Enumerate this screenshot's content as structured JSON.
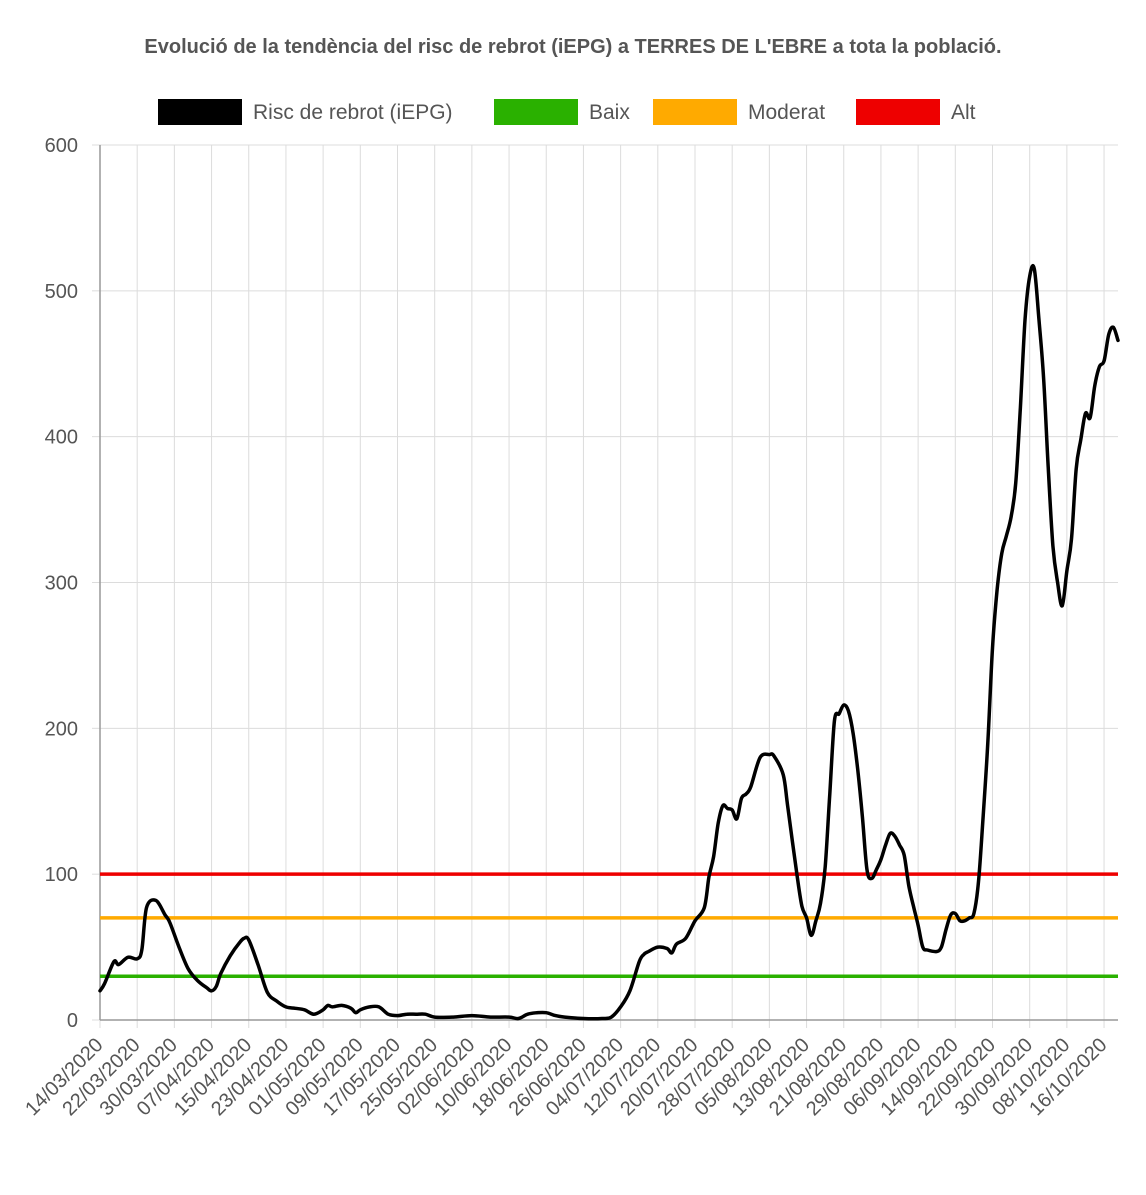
{
  "chart_data": {
    "type": "line",
    "title": "Evolució de la tendència del risc de rebrot (iEPG) a TERRES DE L'EBRE a tota la població.",
    "xlabel": "",
    "ylabel": "",
    "ylim": [
      0,
      600
    ],
    "y_ticks": [
      0,
      100,
      200,
      300,
      400,
      500,
      600
    ],
    "x_start": "14/03/2020",
    "x_end": "19/10/2020",
    "x_tick_labels": [
      "14/03/2020",
      "22/03/2020",
      "30/03/2020",
      "07/04/2020",
      "15/04/2020",
      "23/04/2020",
      "01/05/2020",
      "09/05/2020",
      "17/05/2020",
      "25/05/2020",
      "02/06/2020",
      "10/06/2020",
      "18/06/2020",
      "26/06/2020",
      "04/07/2020",
      "12/07/2020",
      "20/07/2020",
      "28/07/2020",
      "05/08/2020",
      "13/08/2020",
      "21/08/2020",
      "29/08/2020",
      "06/09/2020",
      "14/09/2020",
      "22/09/2020",
      "30/09/2020",
      "08/10/2020",
      "16/10/2020"
    ],
    "grid": true,
    "legend_position": "top",
    "series": [
      {
        "name": "Risc de rebrot (iEPG)",
        "color": "#000000",
        "points": [
          [
            "14/03/2020",
            20
          ],
          [
            "15/03/2020",
            25
          ],
          [
            "17/03/2020",
            40
          ],
          [
            "18/03/2020",
            38
          ],
          [
            "20/03/2020",
            43
          ],
          [
            "22/03/2020",
            42
          ],
          [
            "23/03/2020",
            48
          ],
          [
            "24/03/2020",
            77
          ],
          [
            "26/03/2020",
            82
          ],
          [
            "28/03/2020",
            72
          ],
          [
            "29/03/2020",
            67
          ],
          [
            "31/03/2020",
            50
          ],
          [
            "02/04/2020",
            35
          ],
          [
            "04/04/2020",
            27
          ],
          [
            "06/04/2020",
            22
          ],
          [
            "07/04/2020",
            20
          ],
          [
            "08/04/2020",
            23
          ],
          [
            "09/04/2020",
            32
          ],
          [
            "11/04/2020",
            44
          ],
          [
            "13/04/2020",
            53
          ],
          [
            "14/04/2020",
            56
          ],
          [
            "15/04/2020",
            55
          ],
          [
            "17/04/2020",
            38
          ],
          [
            "19/04/2020",
            19
          ],
          [
            "21/04/2020",
            13
          ],
          [
            "23/04/2020",
            9
          ],
          [
            "25/04/2020",
            8
          ],
          [
            "27/04/2020",
            7
          ],
          [
            "29/04/2020",
            4
          ],
          [
            "01/05/2020",
            7
          ],
          [
            "02/05/2020",
            10
          ],
          [
            "03/05/2020",
            9
          ],
          [
            "05/05/2020",
            10
          ],
          [
            "07/05/2020",
            8
          ],
          [
            "08/05/2020",
            5
          ],
          [
            "09/05/2020",
            7
          ],
          [
            "11/05/2020",
            9
          ],
          [
            "13/05/2020",
            9
          ],
          [
            "15/05/2020",
            4
          ],
          [
            "17/05/2020",
            3
          ],
          [
            "19/05/2020",
            4
          ],
          [
            "21/05/2020",
            4
          ],
          [
            "23/05/2020",
            4
          ],
          [
            "25/05/2020",
            2
          ],
          [
            "29/05/2020",
            2
          ],
          [
            "02/06/2020",
            3
          ],
          [
            "06/06/2020",
            2
          ],
          [
            "10/06/2020",
            2
          ],
          [
            "12/06/2020",
            1
          ],
          [
            "14/06/2020",
            4
          ],
          [
            "16/06/2020",
            5
          ],
          [
            "18/06/2020",
            5
          ],
          [
            "20/06/2020",
            3
          ],
          [
            "22/06/2020",
            2
          ],
          [
            "26/06/2020",
            1
          ],
          [
            "30/06/2020",
            1
          ],
          [
            "02/07/2020",
            2
          ],
          [
            "04/07/2020",
            9
          ],
          [
            "06/07/2020",
            20
          ],
          [
            "08/07/2020",
            40
          ],
          [
            "09/07/2020",
            45
          ],
          [
            "10/07/2020",
            47
          ],
          [
            "12/07/2020",
            50
          ],
          [
            "14/07/2020",
            49
          ],
          [
            "15/07/2020",
            46
          ],
          [
            "16/07/2020",
            52
          ],
          [
            "18/07/2020",
            56
          ],
          [
            "20/07/2020",
            68
          ],
          [
            "22/07/2020",
            77
          ],
          [
            "23/07/2020",
            98
          ],
          [
            "24/07/2020",
            112
          ],
          [
            "25/07/2020",
            135
          ],
          [
            "26/07/2020",
            147
          ],
          [
            "27/07/2020",
            145
          ],
          [
            "28/07/2020",
            144
          ],
          [
            "29/07/2020",
            138
          ],
          [
            "30/07/2020",
            152
          ],
          [
            "31/07/2020",
            155
          ],
          [
            "01/08/2020",
            160
          ],
          [
            "03/08/2020",
            180
          ],
          [
            "05/08/2020",
            182
          ],
          [
            "06/08/2020",
            181
          ],
          [
            "08/08/2020",
            168
          ],
          [
            "09/08/2020",
            145
          ],
          [
            "11/08/2020",
            98
          ],
          [
            "12/08/2020",
            78
          ],
          [
            "13/08/2020",
            70
          ],
          [
            "14/08/2020",
            58
          ],
          [
            "15/08/2020",
            68
          ],
          [
            "16/08/2020",
            80
          ],
          [
            "17/08/2020",
            105
          ],
          [
            "18/08/2020",
            155
          ],
          [
            "19/08/2020",
            205
          ],
          [
            "20/08/2020",
            210
          ],
          [
            "21/08/2020",
            216
          ],
          [
            "22/08/2020",
            212
          ],
          [
            "23/08/2020",
            197
          ],
          [
            "24/08/2020",
            172
          ],
          [
            "25/08/2020",
            140
          ],
          [
            "26/08/2020",
            103
          ],
          [
            "27/08/2020",
            97
          ],
          [
            "28/08/2020",
            103
          ],
          [
            "29/08/2020",
            110
          ],
          [
            "30/08/2020",
            120
          ],
          [
            "31/08/2020",
            128
          ],
          [
            "01/09/2020",
            126
          ],
          [
            "02/09/2020",
            120
          ],
          [
            "03/09/2020",
            113
          ],
          [
            "04/09/2020",
            92
          ],
          [
            "05/09/2020",
            78
          ],
          [
            "06/09/2020",
            65
          ],
          [
            "07/09/2020",
            50
          ],
          [
            "08/09/2020",
            48
          ],
          [
            "10/09/2020",
            47
          ],
          [
            "11/09/2020",
            50
          ],
          [
            "12/09/2020",
            62
          ],
          [
            "13/09/2020",
            72
          ],
          [
            "14/09/2020",
            73
          ],
          [
            "15/09/2020",
            68
          ],
          [
            "16/09/2020",
            68
          ],
          [
            "17/09/2020",
            70
          ],
          [
            "18/09/2020",
            73
          ],
          [
            "19/09/2020",
            95
          ],
          [
            "20/09/2020",
            140
          ],
          [
            "21/09/2020",
            190
          ],
          [
            "22/09/2020",
            255
          ],
          [
            "23/09/2020",
            295
          ],
          [
            "24/09/2020",
            320
          ],
          [
            "25/09/2020",
            332
          ],
          [
            "26/09/2020",
            345
          ],
          [
            "27/09/2020",
            368
          ],
          [
            "28/09/2020",
            420
          ],
          [
            "29/09/2020",
            480
          ],
          [
            "30/09/2020",
            510
          ],
          [
            "01/10/2020",
            515
          ],
          [
            "02/10/2020",
            480
          ],
          [
            "03/10/2020",
            440
          ],
          [
            "04/10/2020",
            378
          ],
          [
            "05/10/2020",
            325
          ],
          [
            "06/10/2020",
            300
          ],
          [
            "07/10/2020",
            284
          ],
          [
            "08/10/2020",
            308
          ],
          [
            "09/10/2020",
            330
          ],
          [
            "10/10/2020",
            378
          ],
          [
            "11/10/2020",
            398
          ],
          [
            "12/10/2020",
            416
          ],
          [
            "13/10/2020",
            413
          ],
          [
            "14/10/2020",
            435
          ],
          [
            "15/10/2020",
            448
          ],
          [
            "16/10/2020",
            452
          ],
          [
            "17/10/2020",
            470
          ],
          [
            "18/10/2020",
            475
          ],
          [
            "19/10/2020",
            466
          ]
        ]
      },
      {
        "name": "Baix",
        "color": "#2ab100",
        "constant": 30
      },
      {
        "name": "Moderat",
        "color": "#ffaa00",
        "constant": 70
      },
      {
        "name": "Alt",
        "color": "#ee0000",
        "constant": 100
      }
    ]
  }
}
